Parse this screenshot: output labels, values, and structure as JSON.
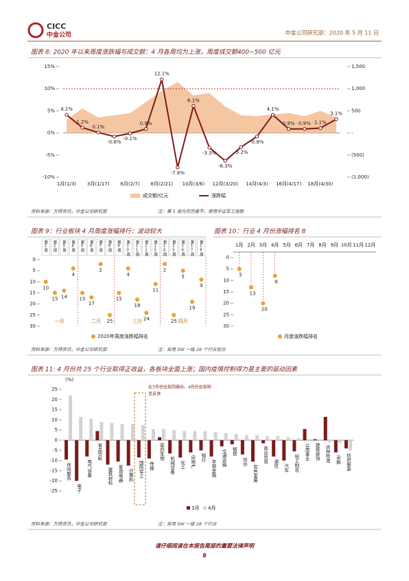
{
  "header": {
    "logo": "CICC",
    "logo_cn": "中金公司",
    "title": "中金公司研究部：2020 年 5 月 11 日"
  },
  "chart_data": [
    {
      "type": "combo",
      "title": "图表 8: 2020 年以来周度涨跌幅与成交额：4 月各周均为上涨，周度成交额400~500 亿元",
      "categories": [
        "1月(1/3)",
        null,
        "3月(1/17)",
        null,
        "6月(2/7)",
        null,
        "8月(2/21)",
        null,
        "10月(3/6)",
        null,
        "12月(3/20)",
        null,
        "14月(4/3)",
        null,
        "16月(4/17)",
        null,
        "18月(4/30)",
        null
      ],
      "series": [
        {
          "name": "成交额/亿元",
          "type": "area",
          "axis": "y2",
          "color": "#f5c6a2",
          "values": [
            300,
            550,
            350,
            400,
            450,
            700,
            950,
            1150,
            850,
            900,
            600,
            400,
            380,
            420,
            450,
            380,
            500,
            350
          ]
        },
        {
          "name": "涨跌幅",
          "type": "line",
          "color": "#7b1a1a",
          "values": [
            4.1,
            1.2,
            0.1,
            -0.8,
            -0.1,
            0.9,
            12.1,
            -7.8,
            6.1,
            -3.3,
            -6.3,
            -3.2,
            -0.8,
            4.1,
            0.9,
            0.9,
            1.1,
            3.1
          ],
          "value_labels": [
            "4.1%",
            "1.2%",
            "0.1%",
            "-0.8%",
            "-0.1%",
            "0.9%",
            "12.1%",
            "-7.8%",
            "6.1%",
            "-3.3%",
            "-6.3%",
            "-3.2%",
            "-0.8%",
            "4.1%",
            "0.9%",
            "0.9%",
            "1.1%",
            "3.1%"
          ]
        }
      ],
      "ylim": [
        -10,
        15
      ],
      "yticks": [
        {
          "value": -10,
          "label": "-10%"
        },
        {
          "value": -5,
          "label": "-5%"
        },
        {
          "value": 0,
          "label": "0%"
        },
        {
          "value": 5,
          "label": "5%"
        },
        {
          "value": 10,
          "label": "10%"
        },
        {
          "value": 15,
          "label": "15%"
        }
      ],
      "y2lim": [
        -1000,
        1500
      ],
      "y2ticks": [
        {
          "value": -1000,
          "label": "(1,000)"
        },
        {
          "value": -500,
          "label": "(500)"
        },
        {
          "value": 0,
          "label": "-"
        },
        500,
        {
          "value": 1000,
          "label": "1,000"
        },
        {
          "value": 1500,
          "label": "1,500"
        }
      ],
      "reference_line": {
        "axis": "y2",
        "value": 1000,
        "color": "#c0392b"
      },
      "legend": "bottom"
    },
    {
      "type": "dot_groups",
      "title": "图表 9：行业板块 4 月周度涨幅排行：波动较大",
      "series_name": "2020年周度涨跌幅排名",
      "color": "#f5a623",
      "groups": [
        {
          "name": "一月",
          "categories": [
            "第1周",
            "第2周",
            "第3周",
            "第4周"
          ],
          "values": [
            10,
            15,
            14,
            4
          ]
        },
        {
          "name": "二月",
          "categories": [
            "第5周",
            "第6周",
            "第7周",
            "第8周"
          ],
          "values": [
            15,
            17,
            2,
            25
          ]
        },
        {
          "name": "三月",
          "categories": [
            "第9周",
            "第10周",
            "第11周",
            "第12周",
            "第13周"
          ],
          "values": [
            15,
            4,
            18,
            24,
            11
          ]
        },
        {
          "name": "四月",
          "categories": [
            "第14周",
            "第15周",
            "第16周",
            "第17周",
            "第18周"
          ],
          "values": [
            2,
            25,
            5,
            19,
            9
          ]
        }
      ],
      "ylim": [
        0,
        30
      ],
      "yticks": [
        0,
        5,
        10,
        15,
        20,
        25,
        30
      ],
      "y_inverted": true,
      "legend": "bottom"
    },
    {
      "type": "scatter",
      "title": "图表 10：行业 4 月份涨幅排名 8",
      "categories": [
        "1月",
        "2月",
        "3月",
        "4月",
        "5月",
        "6月",
        "7月",
        "8月",
        "9月",
        "10月",
        "11月",
        "12月"
      ],
      "series": [
        {
          "name": "月度涨跌幅排名",
          "color": "#f5a623",
          "values": [
            5,
            13,
            20,
            8,
            null,
            null,
            null,
            null,
            null,
            null,
            null,
            null
          ]
        }
      ],
      "ylim": [
        0,
        30
      ],
      "yticks": [
        0,
        5,
        10,
        15,
        20,
        25,
        30
      ],
      "y_inverted": true,
      "legend": "bottom"
    },
    {
      "type": "bar",
      "title": "图表 11: 4 月份共 25 个行业取得正收益，各板块全面上涨；国内疫情控制得力是主要的驱动因素",
      "unit_label": "(%)",
      "categories": [
        "休闲服务",
        "电子",
        "电气设备",
        "食品饮料",
        "建筑材料",
        "家用电器",
        "计算机",
        "国防军工",
        "传媒",
        "医药生物",
        "机械设备",
        "化工",
        "房地产",
        "银行",
        "非银金融",
        "交通运输",
        "钢铁",
        "综合",
        "有色金属",
        "商业贸易",
        "通信",
        "汽车",
        "轻工制造",
        "公用事业",
        "建筑装饰",
        "农林牧渔",
        "采掘",
        "纺织服装"
      ],
      "series": [
        {
          "name": "3月",
          "color": "#7b1a1a",
          "values": [
            -9.5,
            -20,
            -8,
            4.5,
            -12,
            -10.5,
            -12.5,
            -8.5,
            -9,
            1.5,
            -6.5,
            -8.5,
            -6,
            -5,
            -8,
            -3,
            -2,
            -7,
            -10.5,
            -1.5,
            -8,
            -10,
            -5.5,
            5.5,
            0.5,
            11.5,
            -6,
            -4
          ]
        },
        {
          "name": "4月",
          "color": "#d3d3d3",
          "values": [
            22,
            11.5,
            10.5,
            9,
            8.5,
            8,
            8,
            7.5,
            5.5,
            5.5,
            5,
            4.5,
            4.5,
            4.5,
            4,
            3.5,
            3,
            2.5,
            2.5,
            2,
            2,
            1.5,
            1,
            0.5,
            0.5,
            -1,
            -1.5,
            -5
          ]
        }
      ],
      "ylim": [
        -25,
        25
      ],
      "yticks": [
        -25,
        -20,
        -15,
        -10,
        -5,
        0,
        5,
        10,
        15,
        20,
        25
      ],
      "annotation": [
        "在3月份出现回撤后，4月份出现明",
        "显反弹"
      ],
      "legend": "bottom"
    }
  ],
  "notes": [
    {
      "source": "资料来源：万得资讯，中金公司研究部",
      "note": "注：第 5 周为农历春节，使用中证军工指数"
    },
    {
      "source": "资料来源：万得资讯，中金公司研究部",
      "note": "注：采用 SW 一级 28 个行业划分"
    },
    {
      "source": "资料来源：万得资讯，中金公司研究部",
      "note": "注：采用 SW 一级 28 个行业"
    }
  ],
  "footer": {
    "disclaimer": "请仔细阅读在本报告尾部的重要法律声明",
    "page": "8"
  }
}
